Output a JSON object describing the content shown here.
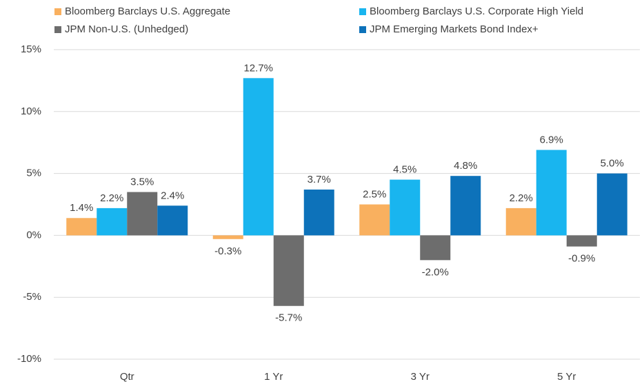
{
  "chart_data": {
    "type": "bar",
    "categories": [
      "Qtr",
      "1 Yr",
      "3 Yr",
      "5 Yr"
    ],
    "series": [
      {
        "name": "Bloomberg Barclays U.S. Aggregate",
        "color": "#f9b05f",
        "values": [
          1.4,
          -0.3,
          2.5,
          2.2
        ],
        "value_labels": [
          "1.4%",
          "-0.3%",
          "2.5%",
          "2.2%"
        ]
      },
      {
        "name": "Bloomberg Barclays U.S. Corporate High Yield",
        "color": "#19b5ef",
        "values": [
          2.2,
          12.7,
          4.5,
          6.9
        ],
        "value_labels": [
          "2.2%",
          "12.7%",
          "4.5%",
          "6.9%"
        ]
      },
      {
        "name": "JPM Non-U.S. (Unhedged)",
        "color": "#6d6d6d",
        "values": [
          3.5,
          -5.7,
          -2.0,
          -0.9
        ],
        "value_labels": [
          "3.5%",
          "-5.7%",
          "-2.0%",
          "-0.9%"
        ]
      },
      {
        "name": "JPM Emerging Markets Bond Index+",
        "color": "#0d72ba",
        "values": [
          2.4,
          3.7,
          4.8,
          5.0
        ],
        "value_labels": [
          "2.4%",
          "3.7%",
          "4.8%",
          "5.0%"
        ]
      }
    ],
    "ylim": [
      -10,
      15
    ],
    "yticks": [
      {
        "value": -10,
        "label": "-10%"
      },
      {
        "value": -5,
        "label": "-5%"
      },
      {
        "value": 0,
        "label": "0%"
      },
      {
        "value": 5,
        "label": "5%"
      },
      {
        "value": 10,
        "label": "10%"
      },
      {
        "value": 15,
        "label": "15%"
      }
    ],
    "grid": true,
    "legend": "top"
  }
}
